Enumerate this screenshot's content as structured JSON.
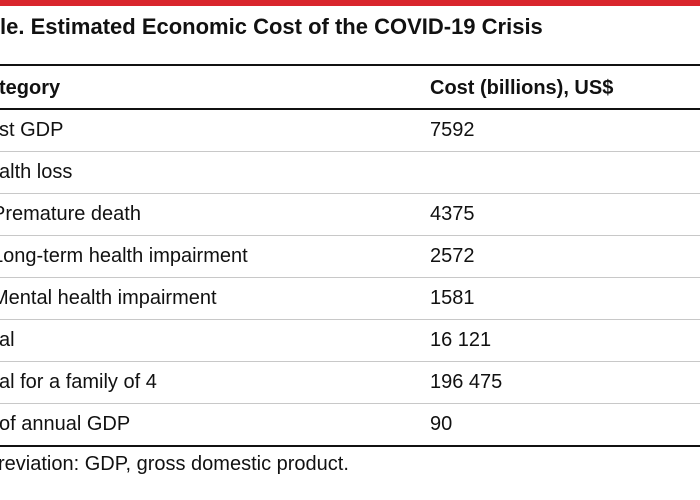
{
  "colors": {
    "accent": "#d9262c"
  },
  "title": "le. Estimated Economic Cost of the COVID-19 Crisis",
  "table": {
    "headers": {
      "category": "tegory",
      "cost": "Cost (billions), US$"
    },
    "rows": [
      {
        "category": "st GDP",
        "cost": "7592"
      },
      {
        "category": "alth loss",
        "cost": ""
      },
      {
        "category": "Premature death",
        "cost": "4375"
      },
      {
        "category": "Long-term health impairment",
        "cost": "2572"
      },
      {
        "category": "Mental health impairment",
        "cost": "1581"
      },
      {
        "category": "al",
        "cost": "16 121"
      },
      {
        "category": "al for a family of 4",
        "cost": "196 475"
      },
      {
        "category": "of annual GDP",
        "cost": "90"
      }
    ]
  },
  "footnote": "reviation: GDP, gross domestic product."
}
